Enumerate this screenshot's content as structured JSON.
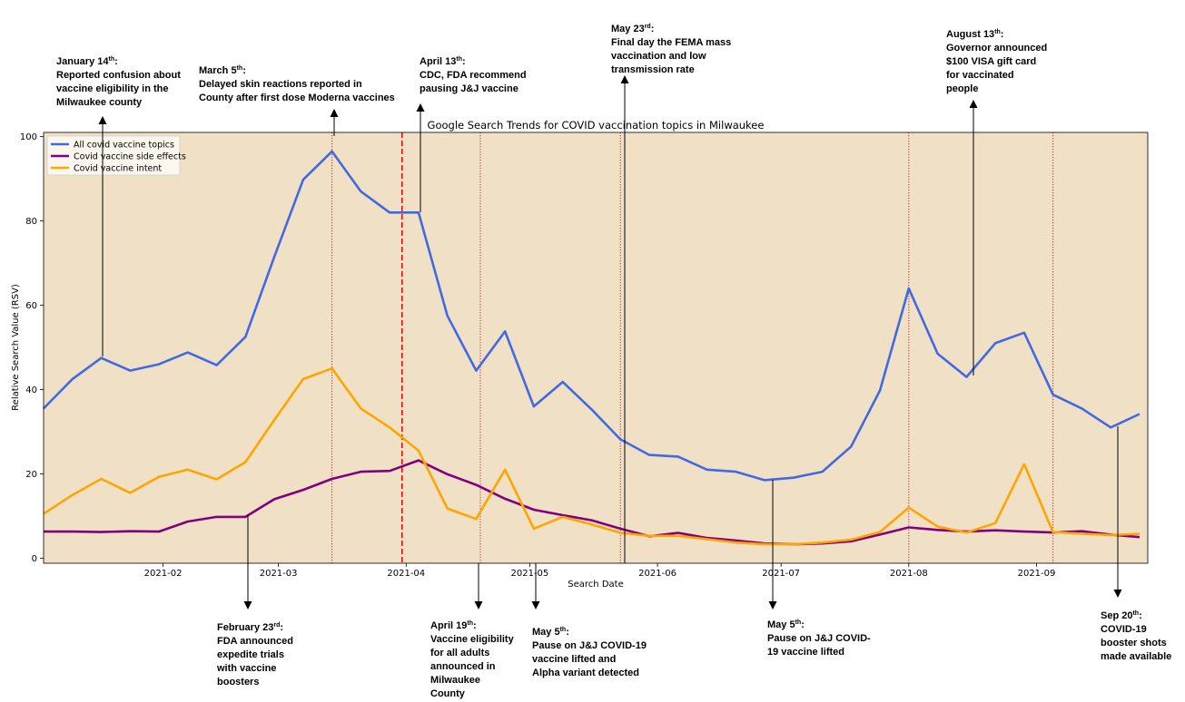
{
  "colors": {
    "background": "#f0e0c6",
    "all_topics": "#4169e1",
    "side_effects": "#800080",
    "intent": "#ffa500",
    "event_line": "#b22222",
    "dashed_line": "#ff0000"
  },
  "chart_data": {
    "type": "line",
    "title": "Google Search Trends for COVID vaccination topics in Milwaukee",
    "xlabel": "Search Date",
    "ylabel": "Relative Search Value (RSV)",
    "ylim": [
      -1.2,
      101
    ],
    "xlim": [
      "2021-01-03",
      "2021-09-28"
    ],
    "yticks": [
      0,
      20,
      40,
      60,
      80,
      100
    ],
    "xticks": [
      "2021-02",
      "2021-03",
      "2021-04",
      "2021-05",
      "2021-06",
      "2021-07",
      "2021-08",
      "2021-09"
    ],
    "grid": false,
    "legend_position": "top-left",
    "x": [
      "2021-01-03",
      "2021-01-10",
      "2021-01-17",
      "2021-01-24",
      "2021-01-31",
      "2021-02-07",
      "2021-02-14",
      "2021-02-21",
      "2021-02-28",
      "2021-03-07",
      "2021-03-14",
      "2021-03-21",
      "2021-03-28",
      "2021-04-04",
      "2021-04-11",
      "2021-04-18",
      "2021-04-25",
      "2021-05-02",
      "2021-05-09",
      "2021-05-16",
      "2021-05-23",
      "2021-05-30",
      "2021-06-06",
      "2021-06-13",
      "2021-06-20",
      "2021-06-27",
      "2021-07-04",
      "2021-07-11",
      "2021-07-18",
      "2021-07-25",
      "2021-08-01",
      "2021-08-08",
      "2021-08-15",
      "2021-08-22",
      "2021-08-29",
      "2021-09-05",
      "2021-09-12",
      "2021-09-19",
      "2021-09-26"
    ],
    "series": [
      {
        "name": "All covid vaccine topics",
        "values": [
          35.5,
          42.5,
          47.5,
          44.5,
          46,
          48.8,
          45.8,
          52.5,
          71.5,
          89.8,
          96.5,
          87,
          82,
          82,
          57.5,
          44.5,
          53.8,
          36,
          41.8,
          35.3,
          28.2,
          24.5,
          24.1,
          21,
          20.5,
          18.5,
          19.1,
          20.5,
          26.5,
          39.8,
          64,
          48.5,
          43,
          51,
          53.5,
          38.8,
          35.5,
          31,
          34.2
        ]
      },
      {
        "name": "Covid vaccine side effects",
        "values": [
          6.3,
          6.3,
          6.2,
          6.4,
          6.3,
          8.7,
          9.8,
          9.8,
          14,
          16.2,
          18.8,
          20.5,
          20.7,
          23.2,
          19.9,
          17.4,
          14.1,
          11.5,
          10.2,
          9,
          7,
          5.2,
          6,
          4.8,
          4.2,
          3.5,
          3.3,
          3.5,
          4,
          5.6,
          7.3,
          6.7,
          6.3,
          6.6,
          6.3,
          6.1,
          6.4,
          5.6,
          5
        ]
      },
      {
        "name": "Covid vaccine intent",
        "values": [
          10.5,
          15,
          18.8,
          15.5,
          19.3,
          21,
          18.7,
          22.8,
          32.8,
          42.5,
          45,
          35.5,
          31,
          25.5,
          11.8,
          9.3,
          21,
          7,
          9.8,
          8,
          6,
          5.3,
          5.3,
          4.5,
          3.7,
          3.3,
          3.3,
          3.7,
          4.4,
          6.2,
          12,
          7.5,
          6.1,
          8.3,
          22.3,
          6.2,
          5.8,
          5.5,
          5.8
        ]
      }
    ],
    "event_lines": [
      "2021-03-14",
      "2021-04-19",
      "2021-05-23",
      "2021-08-01",
      "2021-09-05"
    ],
    "dashed_line": "2021-03-31",
    "annotations": [
      {
        "id": "jan14",
        "date_label": "January 14",
        "sup": "th",
        "lines": [
          "Reported confusion about",
          "vaccine eligibility in the",
          "Milwaukee county"
        ],
        "position": "above"
      },
      {
        "id": "mar5",
        "date_label": "March 5",
        "sup": "th",
        "lines": [
          "Delayed skin reactions reported in",
          "County after first dose Moderna vaccines"
        ],
        "position": "above"
      },
      {
        "id": "apr13",
        "date_label": "April 13",
        "sup": "th",
        "lines": [
          "CDC, FDA recommend",
          "pausing J&J vaccine"
        ],
        "position": "above"
      },
      {
        "id": "may23",
        "date_label": "May 23",
        "sup": "rd",
        "lines": [
          "Final day the FEMA mass",
          "vaccination and low",
          "transmission rate"
        ],
        "position": "above"
      },
      {
        "id": "aug13",
        "date_label": "August 13",
        "sup": "th",
        "lines": [
          "Governor announced",
          "$100 VISA gift card",
          "for vaccinated",
          "people"
        ],
        "position": "above"
      },
      {
        "id": "feb23",
        "date_label": "February 23",
        "sup": "rd",
        "lines": [
          "FDA announced",
          "expedite trials",
          "with vaccine",
          "boosters"
        ],
        "position": "below"
      },
      {
        "id": "apr19",
        "date_label": "April 19",
        "sup": "th",
        "lines": [
          "Vaccine eligibility",
          "for all adults",
          "announced in",
          "Milwaukee",
          "County"
        ],
        "position": "below"
      },
      {
        "id": "may5a",
        "date_label": "May 5",
        "sup": "th",
        "lines": [
          "Pause on J&J COVID-19",
          "vaccine lifted and",
          "Alpha variant detected"
        ],
        "position": "below"
      },
      {
        "id": "may5b",
        "date_label": "May 5",
        "sup": "th",
        "lines": [
          "Pause on J&J COVID-",
          "19 vaccine lifted"
        ],
        "position": "below"
      },
      {
        "id": "sep20",
        "date_label": "Sep 20",
        "sup": "th",
        "lines": [
          "COVID-19",
          "booster shots",
          "made available"
        ],
        "position": "below"
      }
    ]
  }
}
